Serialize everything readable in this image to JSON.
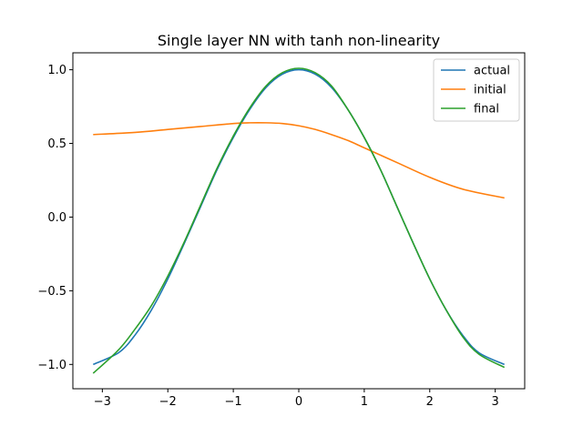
{
  "chart_data": {
    "type": "line",
    "title": "Single layer NN with tanh non-linearity",
    "xlabel": "",
    "ylabel": "",
    "xlim": [
      -3.45,
      3.45
    ],
    "ylim": [
      -1.165,
      1.115
    ],
    "x_ticks": [
      -3,
      -2,
      -1,
      0,
      1,
      2,
      3
    ],
    "x_tick_labels": [
      "−3",
      "−2",
      "−1",
      "0",
      "1",
      "2",
      "3"
    ],
    "y_ticks": [
      -1.0,
      -0.5,
      0.0,
      0.5,
      1.0
    ],
    "y_tick_labels": [
      "−1.0",
      "−0.5",
      "0.0",
      "0.5",
      "1.0"
    ],
    "grid": false,
    "legend_position": "top-right",
    "series": [
      {
        "name": "actual",
        "color": "#1f77b4",
        "x": [
          -3.14,
          -2.75,
          -2.5,
          -2.25,
          -2.0,
          -1.75,
          -1.5,
          -1.25,
          -1.0,
          -0.75,
          -0.5,
          -0.25,
          0.0,
          0.25,
          0.5,
          0.75,
          1.0,
          1.25,
          1.5,
          1.75,
          2.0,
          2.25,
          2.5,
          2.75,
          3.14
        ],
        "y": [
          -1.0,
          -0.92,
          -0.8,
          -0.63,
          -0.42,
          -0.18,
          0.07,
          0.32,
          0.54,
          0.73,
          0.88,
          0.97,
          1.0,
          0.97,
          0.88,
          0.73,
          0.54,
          0.32,
          0.07,
          -0.18,
          -0.42,
          -0.63,
          -0.8,
          -0.92,
          -1.0
        ]
      },
      {
        "name": "initial",
        "color": "#ff7f0e",
        "x": [
          -3.14,
          -2.5,
          -2.0,
          -1.5,
          -1.0,
          -0.75,
          -0.5,
          -0.25,
          0.0,
          0.25,
          0.5,
          0.75,
          1.0,
          1.5,
          2.0,
          2.5,
          3.14
        ],
        "y": [
          0.56,
          0.575,
          0.595,
          0.615,
          0.635,
          0.64,
          0.64,
          0.635,
          0.62,
          0.595,
          0.56,
          0.52,
          0.47,
          0.37,
          0.27,
          0.19,
          0.13
        ]
      },
      {
        "name": "final",
        "color": "#2ca02c",
        "x": [
          -3.14,
          -2.75,
          -2.5,
          -2.25,
          -2.0,
          -1.75,
          -1.5,
          -1.25,
          -1.0,
          -0.75,
          -0.5,
          -0.25,
          0.0,
          0.25,
          0.5,
          0.75,
          1.0,
          1.25,
          1.5,
          1.75,
          2.0,
          2.25,
          2.5,
          2.75,
          3.14
        ],
        "y": [
          -1.06,
          -0.9,
          -0.76,
          -0.6,
          -0.4,
          -0.17,
          0.08,
          0.33,
          0.55,
          0.74,
          0.89,
          0.98,
          1.01,
          0.98,
          0.89,
          0.73,
          0.54,
          0.32,
          0.07,
          -0.18,
          -0.42,
          -0.63,
          -0.81,
          -0.93,
          -1.02
        ]
      }
    ]
  }
}
